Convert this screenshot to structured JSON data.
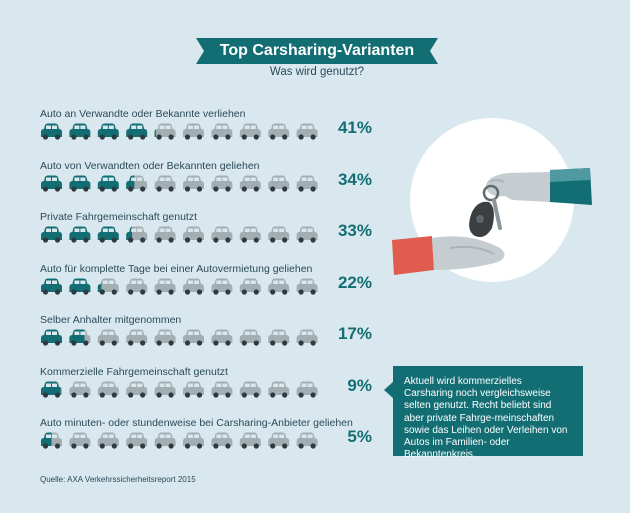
{
  "header": {
    "title": "Top Carsharing-Varianten",
    "subtitle": "Was wird genutzt?"
  },
  "colors": {
    "accent": "#136e74",
    "inactive": "#a3aeb3",
    "background": "#d9e8ef"
  },
  "chart_data": {
    "type": "pictograph",
    "unit": "10 Autos = 100%",
    "categories": [
      "Auto an Verwandte oder Bekannte verliehen",
      "Auto von Verwandten oder Bekannten geliehen",
      "Private Fahrgemeinschaft genutzt",
      "Auto für komplette Tage bei einer Autovermietung geliehen",
      "Selber Anhalter mitgenommen",
      "Kommerzielle Fahrgemeinschaft genutzt",
      "Auto minuten- oder stundenweise bei Carsharing-Anbieter geliehen"
    ],
    "values": [
      41,
      34,
      33,
      22,
      17,
      9,
      5
    ],
    "value_labels": [
      "41%",
      "34%",
      "33%",
      "22%",
      "17%",
      "9%",
      "5%"
    ]
  },
  "info_box": {
    "text": "Aktuell wird kommerzielles Carsharing noch vergleichsweise selten genutzt. Recht beliebt sind aber private Fahrge-meinschaften sowie das Leihen oder Verleihen von Autos im Familien- oder Bekanntenkreis."
  },
  "illustration": {
    "icon": "car-key-handover-icon"
  },
  "source": "Quelle: AXA Verkehrssicherheitsreport 2015"
}
